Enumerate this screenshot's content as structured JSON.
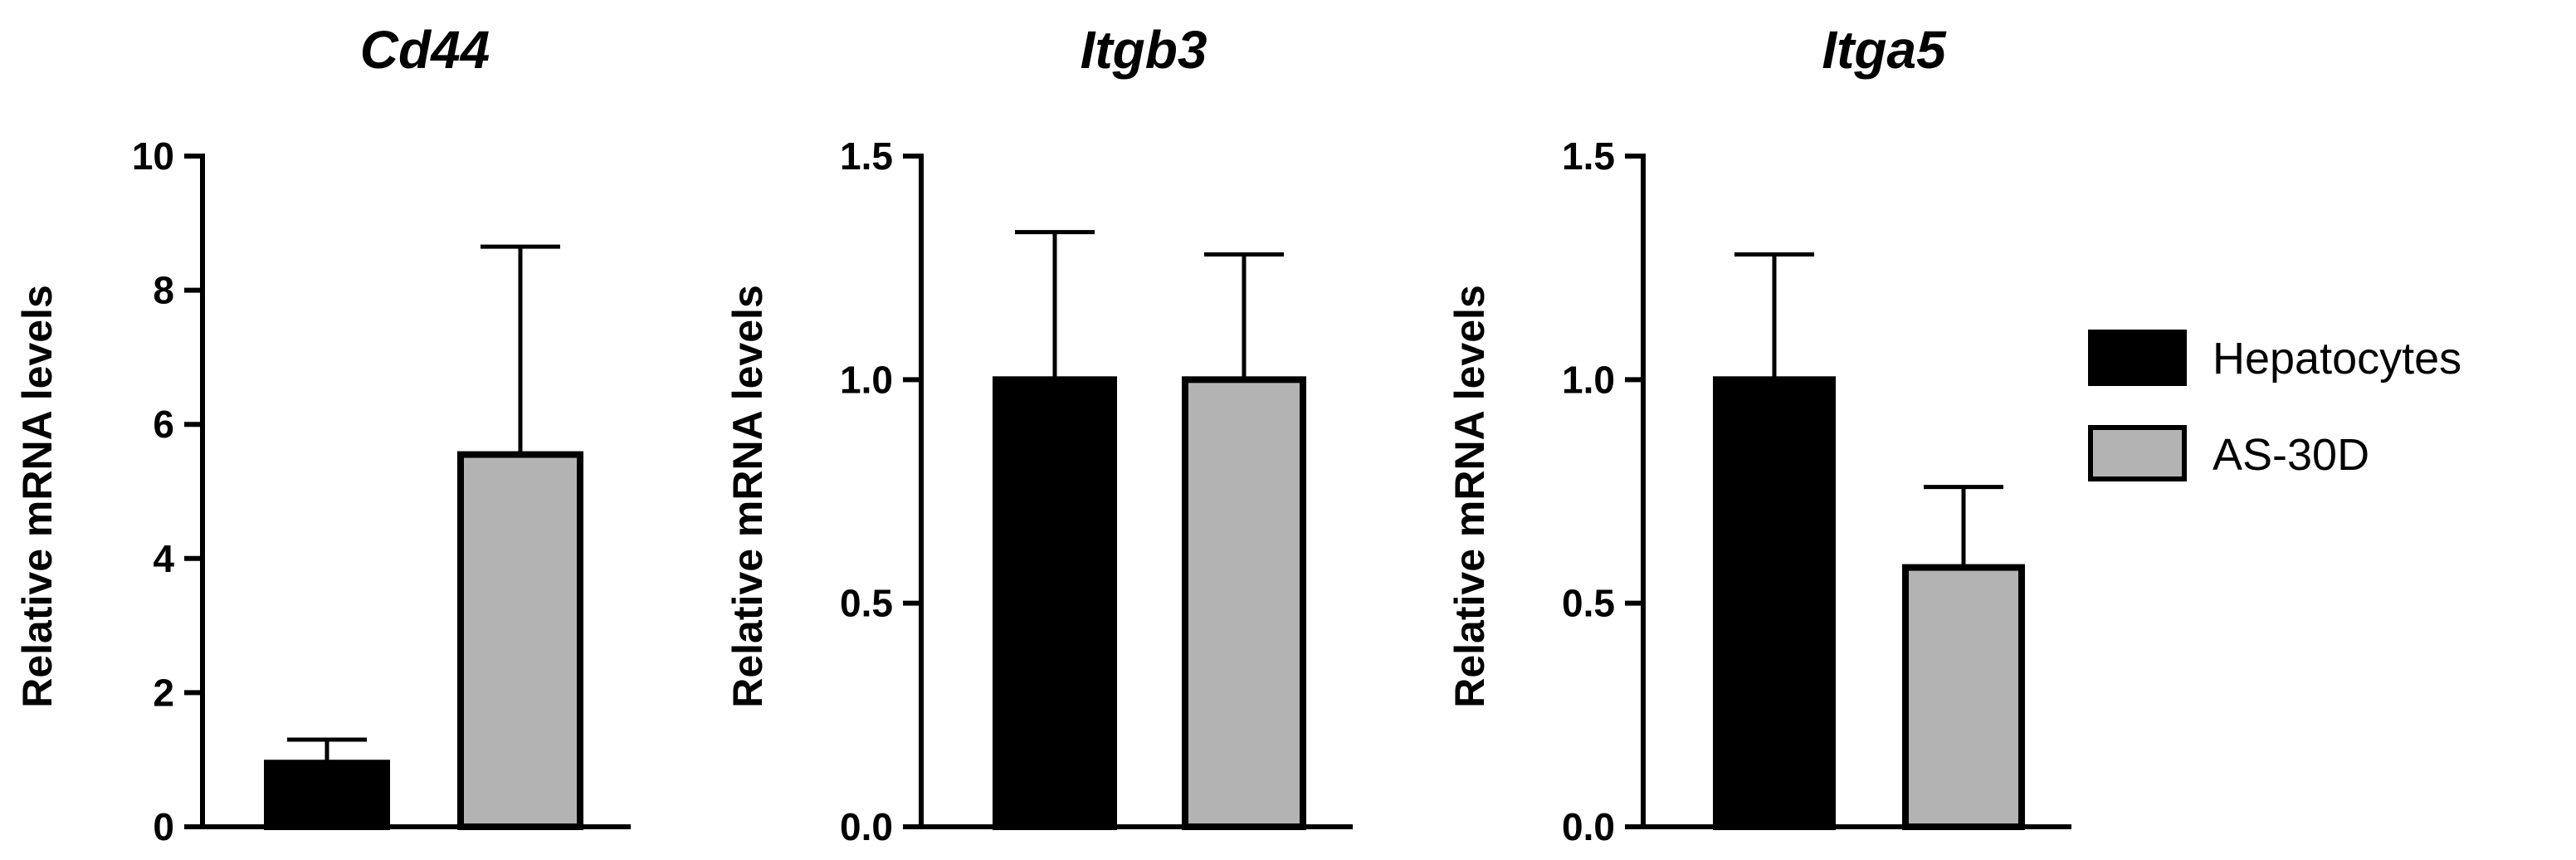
{
  "legend": {
    "placement": "right",
    "entries": [
      {
        "label": "Hepatocytes",
        "color": "#000000"
      },
      {
        "label": "AS-30D",
        "color": "#b3b3b3"
      }
    ]
  },
  "chart_data": [
    {
      "type": "bar",
      "title": "Cd44",
      "ylabel": "Relative mRNA levels",
      "ylim": [
        0,
        10
      ],
      "yticks": [
        "0",
        "2",
        "4",
        "6",
        "8",
        "10"
      ],
      "tick_values": [
        0,
        2,
        4,
        6,
        8,
        10
      ],
      "series": [
        {
          "name": "Hepatocytes",
          "color": "#000000",
          "value": 0.95,
          "error": 0.35
        },
        {
          "name": "AS-30D",
          "color": "#b3b3b3",
          "value": 5.55,
          "error": 3.1
        }
      ]
    },
    {
      "type": "bar",
      "title": "Itgb3",
      "ylabel": "Relative mRNA levels",
      "ylim": [
        0,
        1.5
      ],
      "yticks": [
        "0.0",
        "0.5",
        "1.0",
        "1.5"
      ],
      "tick_values": [
        0,
        0.5,
        1.0,
        1.5
      ],
      "series": [
        {
          "name": "Hepatocytes",
          "color": "#000000",
          "value": 1.0,
          "error": 0.33
        },
        {
          "name": "AS-30D",
          "color": "#b3b3b3",
          "value": 1.0,
          "error": 0.28
        }
      ]
    },
    {
      "type": "bar",
      "title": "Itga5",
      "ylabel": "Relative mRNA levels",
      "ylim": [
        0,
        1.5
      ],
      "yticks": [
        "0.0",
        "0.5",
        "1.0",
        "1.5"
      ],
      "tick_values": [
        0,
        0.5,
        1.0,
        1.5
      ],
      "series": [
        {
          "name": "Hepatocytes",
          "color": "#000000",
          "value": 1.0,
          "error": 0.28
        },
        {
          "name": "AS-30D",
          "color": "#b3b3b3",
          "value": 0.58,
          "error": 0.18
        }
      ]
    }
  ]
}
